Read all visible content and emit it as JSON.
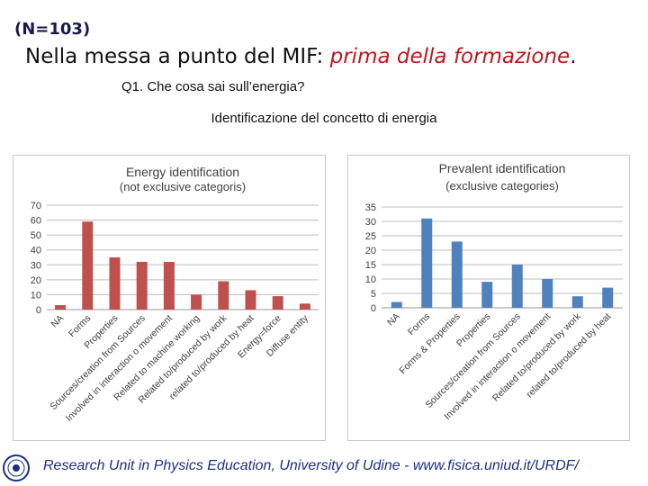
{
  "header": {
    "sample_size": "(N=103)",
    "title_plain": "Nella messa a punto del MIF: ",
    "title_highlight": "prima della formazione",
    "title_end": ".",
    "question": "Q1. Che cosa sai sull’energia?",
    "subtitle": "Identificazione del concetto di energia"
  },
  "footer": {
    "text": "Research Unit in Physics Education, University of Udine  - www.fisica.uniud.it/URDF/"
  },
  "chart_data": [
    {
      "type": "bar",
      "title": "Energy identification",
      "subtitle": "(not exclusive categoris)",
      "categories": [
        "NA",
        "Forms",
        "Properties",
        "Sources/creation from Sources",
        "Involved in interaction o movement",
        "Related to machine working",
        "Related to/produced by work",
        "related to/produced by heat",
        "Energy=force",
        "Diffuse entity"
      ],
      "values": [
        3,
        59,
        35,
        32,
        32,
        10,
        19,
        13,
        9,
        4
      ],
      "ylim": [
        0,
        70
      ],
      "yticks": [
        "0",
        "10",
        "20",
        "30",
        "40",
        "50",
        "60",
        "70"
      ],
      "color": "#c0504d",
      "grid": true
    },
    {
      "type": "bar",
      "title": "Prevalent identification",
      "subtitle": "(exclusive categories)",
      "categories": [
        "NA",
        "Forms",
        "Forms & Properties",
        "Properties",
        "Sources/creation from Sources",
        "Involved in interaction o movement",
        "Related to/produced by work",
        "related to/produced by heat"
      ],
      "values": [
        2,
        31,
        23,
        9,
        15,
        10,
        4,
        7
      ],
      "ylim": [
        0,
        35
      ],
      "yticks": [
        "0",
        "5",
        "10",
        "15",
        "20",
        "25",
        "30",
        "35"
      ],
      "color": "#4f81bd",
      "grid": true
    }
  ]
}
